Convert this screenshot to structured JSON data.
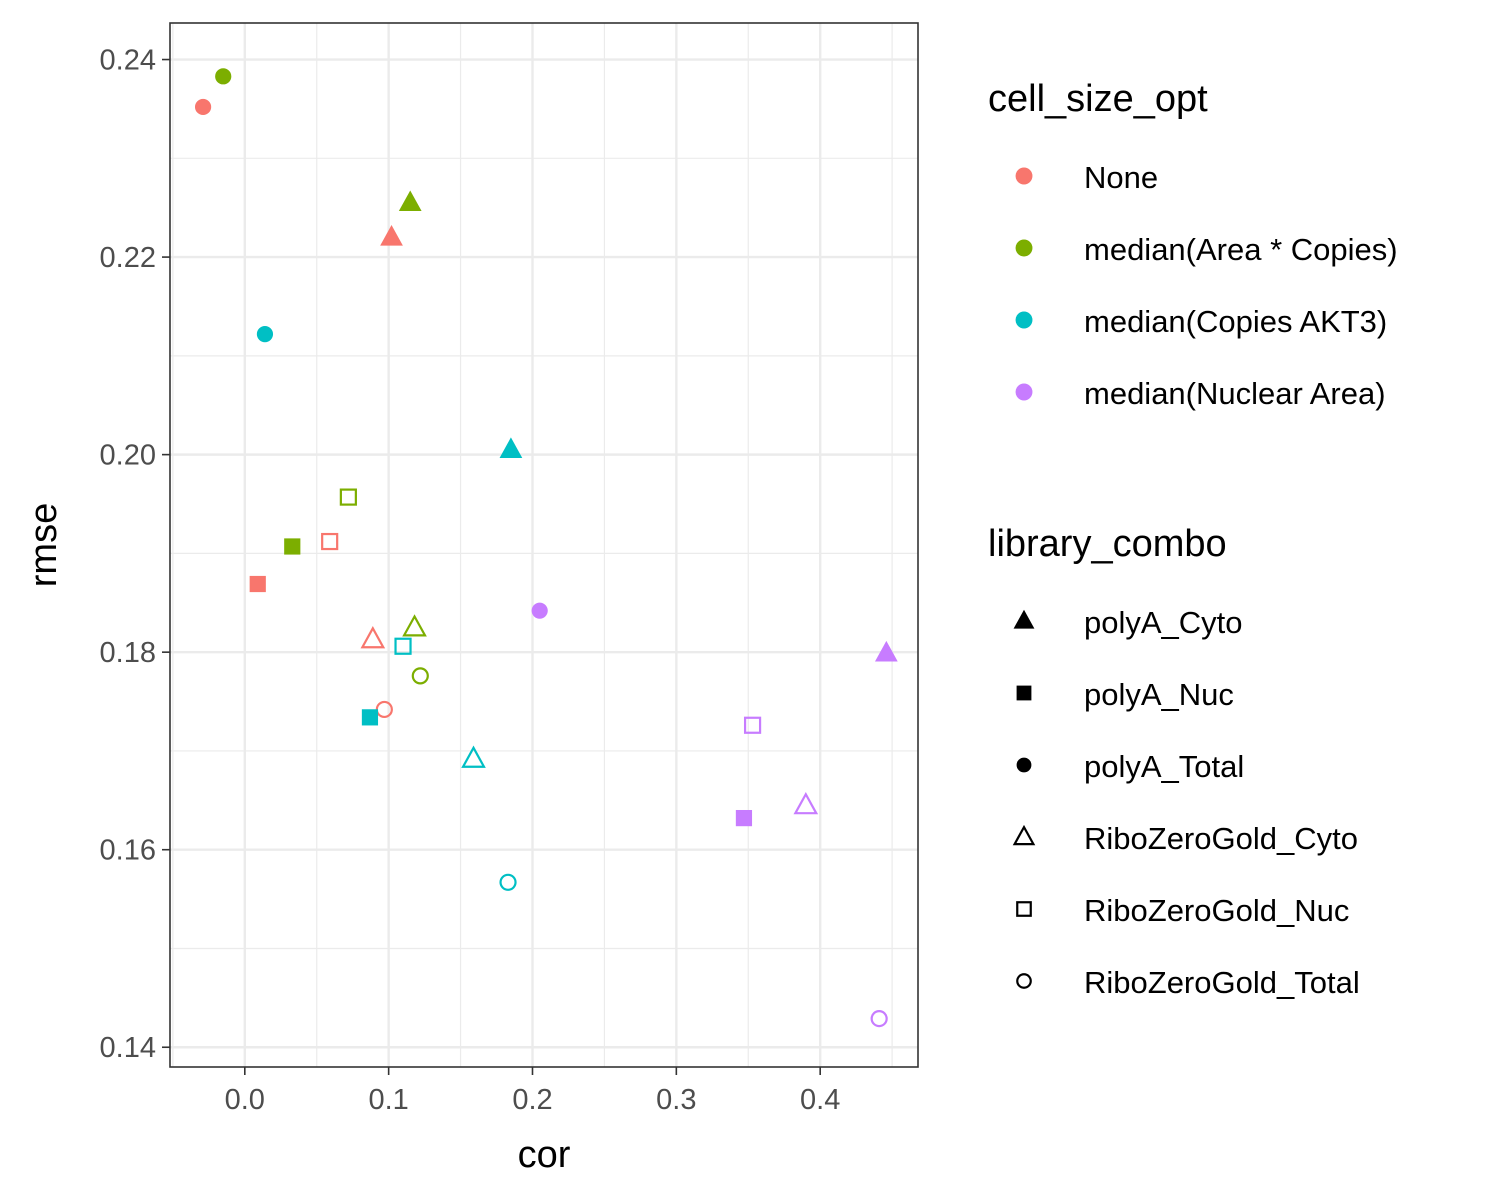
{
  "chart_data": {
    "type": "scatter",
    "xlabel": "cor",
    "ylabel": "rmse",
    "xlim": [
      -0.052,
      0.468
    ],
    "ylim": [
      0.138,
      0.2437
    ],
    "xticks": [
      0.0,
      0.1,
      0.2,
      0.3,
      0.4
    ],
    "xtick_labels": [
      "0.0",
      "0.1",
      "0.2",
      "0.3",
      "0.4"
    ],
    "yticks": [
      0.14,
      0.16,
      0.18,
      0.2,
      0.22,
      0.24
    ],
    "ytick_labels": [
      "0.14",
      "0.16",
      "0.18",
      "0.20",
      "0.22",
      "0.24"
    ],
    "grid": true,
    "legend_placement": "right",
    "color_legend": {
      "title": "cell_size_opt",
      "entries": [
        {
          "label": "None",
          "color": "#F8766D"
        },
        {
          "label": "median(Area * Copies)",
          "color": "#7CAE00"
        },
        {
          "label": "median(Copies AKT3)",
          "color": "#00BFC4"
        },
        {
          "label": "median(Nuclear Area)",
          "color": "#C77CFF"
        }
      ]
    },
    "shape_legend": {
      "title": "library_combo",
      "entries": [
        {
          "label": "polyA_Cyto",
          "shape": "triangle-filled"
        },
        {
          "label": "polyA_Nuc",
          "shape": "square-filled"
        },
        {
          "label": "polyA_Total",
          "shape": "circle-filled"
        },
        {
          "label": "RiboZeroGold_Cyto",
          "shape": "triangle-open"
        },
        {
          "label": "RiboZeroGold_Nuc",
          "shape": "square-open"
        },
        {
          "label": "RiboZeroGold_Total",
          "shape": "circle-open"
        }
      ]
    },
    "points": [
      {
        "x": -0.029,
        "y": 0.2352,
        "color": 0,
        "shape": 2
      },
      {
        "x": -0.015,
        "y": 0.2383,
        "color": 1,
        "shape": 2
      },
      {
        "x": 0.102,
        "y": 0.222,
        "color": 0,
        "shape": 0
      },
      {
        "x": 0.115,
        "y": 0.2255,
        "color": 1,
        "shape": 0
      },
      {
        "x": 0.014,
        "y": 0.2122,
        "color": 2,
        "shape": 2
      },
      {
        "x": 0.185,
        "y": 0.2005,
        "color": 2,
        "shape": 0
      },
      {
        "x": 0.072,
        "y": 0.1957,
        "color": 1,
        "shape": 4
      },
      {
        "x": 0.033,
        "y": 0.1907,
        "color": 1,
        "shape": 1
      },
      {
        "x": 0.059,
        "y": 0.1912,
        "color": 0,
        "shape": 4
      },
      {
        "x": 0.009,
        "y": 0.1869,
        "color": 0,
        "shape": 1
      },
      {
        "x": 0.205,
        "y": 0.1842,
        "color": 3,
        "shape": 2
      },
      {
        "x": 0.118,
        "y": 0.1825,
        "color": 1,
        "shape": 3
      },
      {
        "x": 0.089,
        "y": 0.1813,
        "color": 0,
        "shape": 3
      },
      {
        "x": 0.11,
        "y": 0.1806,
        "color": 2,
        "shape": 4
      },
      {
        "x": 0.446,
        "y": 0.1799,
        "color": 3,
        "shape": 0
      },
      {
        "x": 0.122,
        "y": 0.1776,
        "color": 1,
        "shape": 5
      },
      {
        "x": 0.097,
        "y": 0.1742,
        "color": 0,
        "shape": 5
      },
      {
        "x": 0.087,
        "y": 0.1734,
        "color": 2,
        "shape": 1
      },
      {
        "x": 0.353,
        "y": 0.1726,
        "color": 3,
        "shape": 4
      },
      {
        "x": 0.159,
        "y": 0.1692,
        "color": 2,
        "shape": 3
      },
      {
        "x": 0.39,
        "y": 0.1645,
        "color": 3,
        "shape": 3
      },
      {
        "x": 0.347,
        "y": 0.1632,
        "color": 3,
        "shape": 1
      },
      {
        "x": 0.183,
        "y": 0.1567,
        "color": 2,
        "shape": 5
      },
      {
        "x": 0.441,
        "y": 0.1429,
        "color": 3,
        "shape": 5
      }
    ]
  }
}
